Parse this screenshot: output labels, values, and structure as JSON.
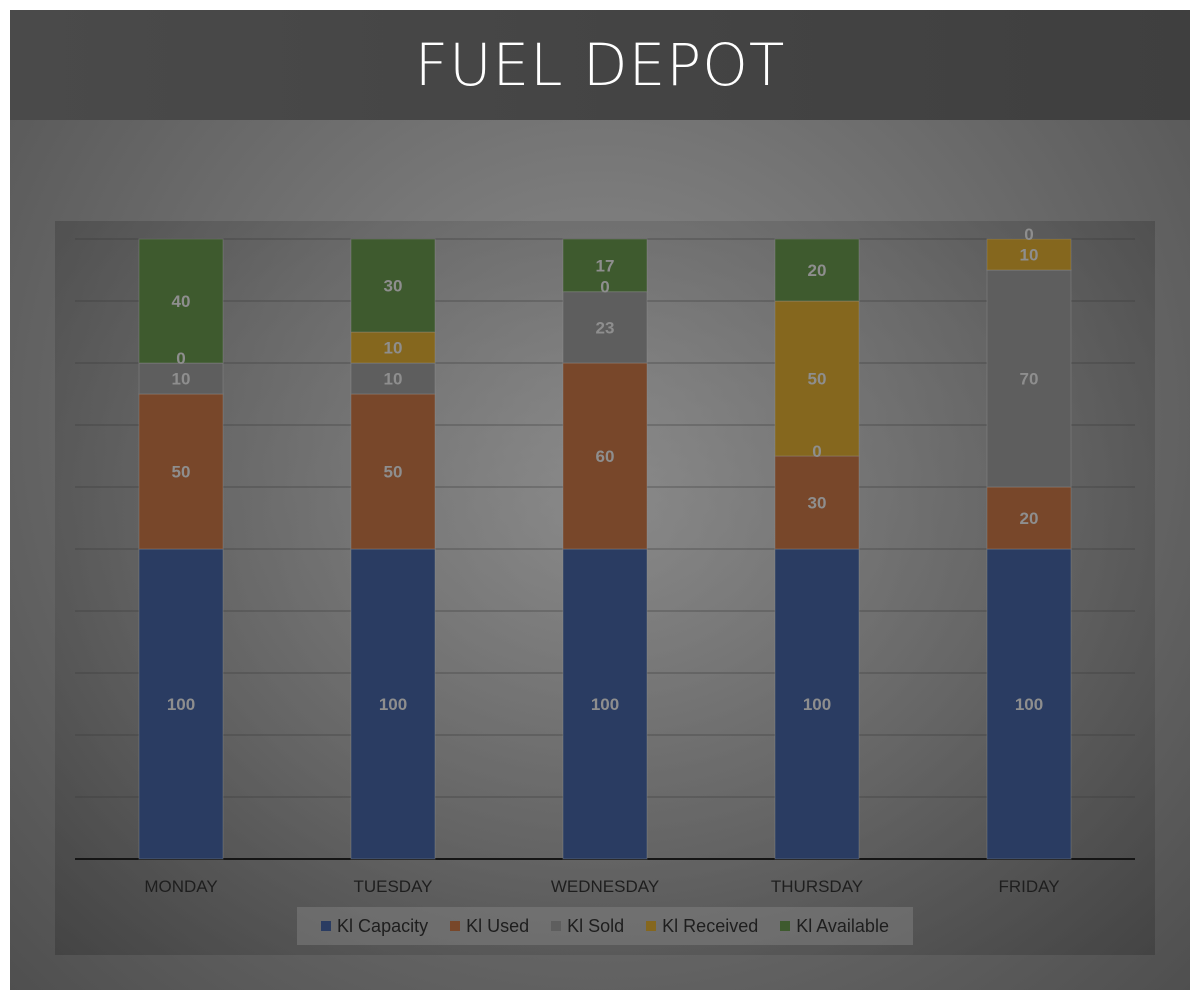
{
  "title": "FUEL DEPOT",
  "colors": {
    "Kl Capacity": "#2a3c62",
    "Kl Used": "#78472a",
    "Kl Sold": "#5e5e5e",
    "Kl Received": "#85671e",
    "Kl Available": "#3e5a2e"
  },
  "chart_data": {
    "type": "bar",
    "stacked": true,
    "title": "FUEL DEPOT",
    "categories": [
      "MONDAY",
      "TUESDAY",
      "WEDNESDAY",
      "THURSDAY",
      "FRIDAY"
    ],
    "series": [
      {
        "name": "Kl Capacity",
        "values": [
          100,
          100,
          100,
          100,
          100
        ]
      },
      {
        "name": "Kl Used",
        "values": [
          50,
          50,
          60,
          30,
          20
        ]
      },
      {
        "name": "Kl Sold",
        "values": [
          10,
          10,
          23,
          0,
          70
        ]
      },
      {
        "name": "Kl Received",
        "values": [
          0,
          10,
          0,
          50,
          10
        ]
      },
      {
        "name": "Kl Available",
        "values": [
          40,
          30,
          17,
          20,
          0
        ]
      }
    ],
    "ylim": [
      0,
      200
    ],
    "grid": true,
    "legend": "bottom"
  }
}
